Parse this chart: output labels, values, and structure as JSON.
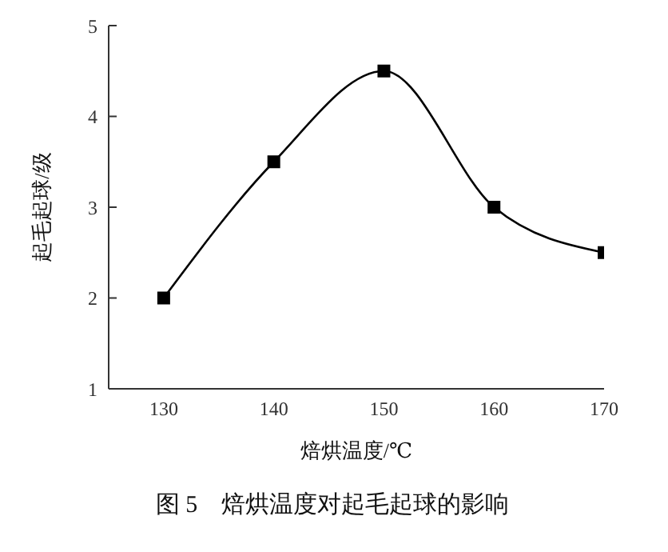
{
  "chart_data": {
    "type": "line",
    "title": "图 5　焙烘温度对起毛起球的影响",
    "xlabel": "焙烘温度/℃",
    "ylabel": "起毛起球/级",
    "x": [
      130,
      140,
      150,
      160,
      170
    ],
    "series": [
      {
        "color": "#000000",
        "values": [
          2,
          3.5,
          4.5,
          3,
          2.5
        ]
      }
    ],
    "xlim": [
      125,
      170
    ],
    "xticks": [
      130,
      140,
      150,
      160,
      170
    ],
    "ylim": [
      1,
      5
    ],
    "yticks": [
      1,
      2,
      3,
      4,
      5
    ],
    "grid": false,
    "legend": false,
    "marker": "square",
    "line_style": "solid"
  }
}
